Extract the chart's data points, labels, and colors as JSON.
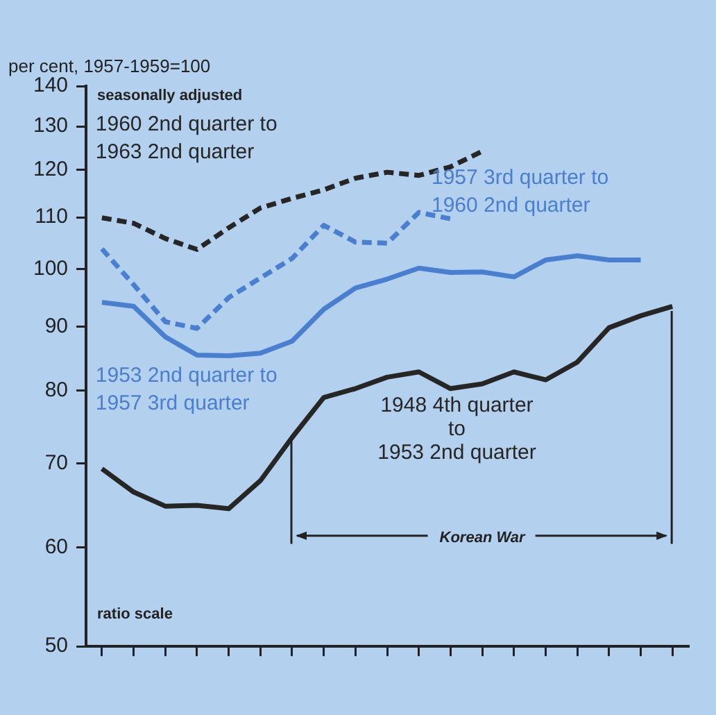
{
  "chart_data": {
    "type": "line",
    "ylabel": "per cent, 1957-1959=100",
    "log": "y",
    "ylim": [
      50,
      140
    ],
    "yticks": [
      50,
      60,
      70,
      80,
      90,
      100,
      110,
      120,
      130,
      140
    ],
    "grid": false,
    "legend": false,
    "marker": "none",
    "categories": [
      null,
      null,
      null,
      null,
      null,
      null,
      null,
      null,
      null,
      null,
      null,
      null,
      null,
      null,
      null,
      null,
      null,
      null,
      null
    ],
    "annotations": [
      "seasonally adjusted",
      "ratio scale",
      "Korean War"
    ],
    "series": [
      {
        "name": "1960 2nd quarter to\n1963 2nd quarter",
        "color": "#262626",
        "line_style": "dashed",
        "values": [
          109.9,
          108.8,
          105.8,
          103.7,
          107.9,
          111.9,
          113.9,
          115.7,
          118.2,
          119.5,
          118.8,
          120.7,
          124.2,
          null,
          null,
          null,
          null,
          null,
          null
        ]
      },
      {
        "name": "1957 3rd quarter to\n1960 2nd quarter",
        "color": "#4a7fd0",
        "line_style": "dashed",
        "values": [
          103.8,
          97.2,
          90.8,
          89.7,
          94.9,
          98.4,
          102,
          108.4,
          105.1,
          104.9,
          111,
          109.7,
          null,
          null,
          null,
          null,
          null,
          null,
          null
        ]
      },
      {
        "name": "1953 2nd quarter to\n1957 3rd quarter",
        "color": "#4a7fd0",
        "line_style": "solid",
        "values": [
          94.1,
          93.4,
          88.3,
          85.4,
          85.3,
          85.7,
          87.6,
          92.9,
          96.6,
          98.2,
          100.2,
          99.4,
          99.5,
          98.6,
          101.7,
          102.5,
          101.7,
          101.7,
          null
        ]
      },
      {
        "name": "1948 4th quarter\nto\n1953 2nd quarter",
        "color": "#262626",
        "line_style": "solid",
        "values": [
          69.3,
          66.4,
          64.7,
          64.8,
          64.4,
          67.8,
          73.4,
          79,
          80.3,
          82,
          82.8,
          80.3,
          81,
          82.8,
          81.6,
          84.3,
          89.8,
          91.8,
          93.4
        ]
      }
    ]
  }
}
